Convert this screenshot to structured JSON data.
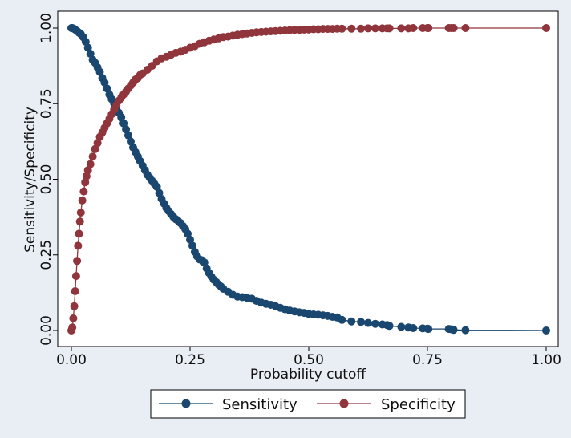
{
  "chart_data": {
    "type": "line",
    "title": "",
    "xlabel": "Probability cutoff",
    "ylabel": "Sensitivity/Specificity",
    "xlim": [
      0,
      1
    ],
    "ylim": [
      0,
      1
    ],
    "x_ticks": [
      "0.00",
      "0.25",
      "0.50",
      "0.75",
      "1.00"
    ],
    "y_ticks": [
      "0.00",
      "0.25",
      "0.50",
      "0.75",
      "1.00"
    ],
    "grid": false,
    "legend_position": "bottom",
    "series": [
      {
        "name": "Sensitivity",
        "color": "#1a476f",
        "x": [
          0.0,
          0.002,
          0.005,
          0.008,
          0.012,
          0.016,
          0.02,
          0.025,
          0.03,
          0.035,
          0.04,
          0.045,
          0.05,
          0.055,
          0.06,
          0.065,
          0.07,
          0.075,
          0.08,
          0.085,
          0.09,
          0.095,
          0.1,
          0.105,
          0.11,
          0.115,
          0.12,
          0.125,
          0.13,
          0.135,
          0.14,
          0.145,
          0.15,
          0.155,
          0.16,
          0.165,
          0.17,
          0.175,
          0.18,
          0.185,
          0.19,
          0.195,
          0.2,
          0.205,
          0.21,
          0.215,
          0.22,
          0.225,
          0.23,
          0.235,
          0.24,
          0.245,
          0.25,
          0.255,
          0.26,
          0.265,
          0.27,
          0.275,
          0.28,
          0.285,
          0.29,
          0.295,
          0.3,
          0.305,
          0.31,
          0.315,
          0.32,
          0.33,
          0.34,
          0.35,
          0.36,
          0.37,
          0.38,
          0.39,
          0.4,
          0.41,
          0.42,
          0.43,
          0.44,
          0.45,
          0.46,
          0.47,
          0.48,
          0.49,
          0.5,
          0.51,
          0.52,
          0.53,
          0.54,
          0.55,
          0.56,
          0.57,
          0.59,
          0.61,
          0.625,
          0.64,
          0.655,
          0.665,
          0.67,
          0.695,
          0.71,
          0.72,
          0.74,
          0.75,
          0.752,
          0.795,
          0.8,
          0.805,
          0.83,
          1.0
        ],
        "y": [
          1.0,
          1.0,
          0.998,
          0.995,
          0.99,
          0.985,
          0.98,
          0.97,
          0.955,
          0.935,
          0.915,
          0.895,
          0.885,
          0.87,
          0.855,
          0.835,
          0.82,
          0.8,
          0.78,
          0.765,
          0.75,
          0.735,
          0.72,
          0.705,
          0.685,
          0.665,
          0.645,
          0.625,
          0.605,
          0.59,
          0.575,
          0.56,
          0.545,
          0.53,
          0.515,
          0.505,
          0.495,
          0.485,
          0.475,
          0.455,
          0.435,
          0.42,
          0.405,
          0.395,
          0.385,
          0.375,
          0.368,
          0.362,
          0.355,
          0.345,
          0.335,
          0.32,
          0.3,
          0.28,
          0.26,
          0.245,
          0.235,
          0.232,
          0.225,
          0.205,
          0.19,
          0.178,
          0.168,
          0.16,
          0.152,
          0.145,
          0.138,
          0.128,
          0.118,
          0.112,
          0.11,
          0.108,
          0.105,
          0.098,
          0.092,
          0.088,
          0.085,
          0.08,
          0.075,
          0.07,
          0.066,
          0.063,
          0.06,
          0.058,
          0.055,
          0.053,
          0.052,
          0.05,
          0.048,
          0.045,
          0.043,
          0.035,
          0.03,
          0.028,
          0.025,
          0.022,
          0.02,
          0.018,
          0.015,
          0.012,
          0.01,
          0.008,
          0.007,
          0.006,
          0.005,
          0.005,
          0.004,
          0.002,
          0.001,
          0.0
        ]
      },
      {
        "name": "Specificity",
        "color": "#90353b",
        "x": [
          0.0,
          0.002,
          0.004,
          0.006,
          0.008,
          0.01,
          0.012,
          0.014,
          0.016,
          0.018,
          0.02,
          0.023,
          0.026,
          0.029,
          0.032,
          0.035,
          0.04,
          0.045,
          0.05,
          0.055,
          0.06,
          0.065,
          0.07,
          0.075,
          0.08,
          0.085,
          0.09,
          0.095,
          0.1,
          0.105,
          0.11,
          0.115,
          0.12,
          0.125,
          0.13,
          0.135,
          0.14,
          0.145,
          0.15,
          0.16,
          0.17,
          0.18,
          0.19,
          0.2,
          0.21,
          0.22,
          0.23,
          0.24,
          0.25,
          0.26,
          0.27,
          0.28,
          0.29,
          0.3,
          0.31,
          0.32,
          0.33,
          0.34,
          0.35,
          0.36,
          0.37,
          0.38,
          0.39,
          0.4,
          0.41,
          0.42,
          0.43,
          0.44,
          0.45,
          0.46,
          0.47,
          0.48,
          0.49,
          0.5,
          0.51,
          0.52,
          0.53,
          0.54,
          0.55,
          0.56,
          0.57,
          0.59,
          0.61,
          0.625,
          0.64,
          0.655,
          0.665,
          0.67,
          0.695,
          0.71,
          0.72,
          0.74,
          0.75,
          0.752,
          0.795,
          0.8,
          0.805,
          0.83,
          1.0
        ],
        "y": [
          0.0,
          0.01,
          0.04,
          0.08,
          0.13,
          0.18,
          0.23,
          0.28,
          0.32,
          0.36,
          0.39,
          0.43,
          0.46,
          0.49,
          0.51,
          0.53,
          0.55,
          0.575,
          0.6,
          0.62,
          0.64,
          0.655,
          0.67,
          0.685,
          0.7,
          0.715,
          0.73,
          0.745,
          0.76,
          0.77,
          0.78,
          0.79,
          0.8,
          0.81,
          0.82,
          0.83,
          0.835,
          0.845,
          0.85,
          0.862,
          0.875,
          0.89,
          0.9,
          0.905,
          0.912,
          0.918,
          0.922,
          0.928,
          0.935,
          0.94,
          0.948,
          0.953,
          0.958,
          0.962,
          0.966,
          0.97,
          0.972,
          0.975,
          0.978,
          0.98,
          0.982,
          0.984,
          0.986,
          0.987,
          0.988,
          0.989,
          0.99,
          0.991,
          0.992,
          0.993,
          0.994,
          0.994,
          0.995,
          0.995,
          0.996,
          0.996,
          0.997,
          0.997,
          0.997,
          0.998,
          0.998,
          0.998,
          0.998,
          0.999,
          0.999,
          0.999,
          0.999,
          0.999,
          0.999,
          0.999,
          1.0,
          1.0,
          1.0,
          1.0,
          1.0,
          1.0,
          1.0,
          1.0,
          1.0
        ]
      }
    ]
  }
}
